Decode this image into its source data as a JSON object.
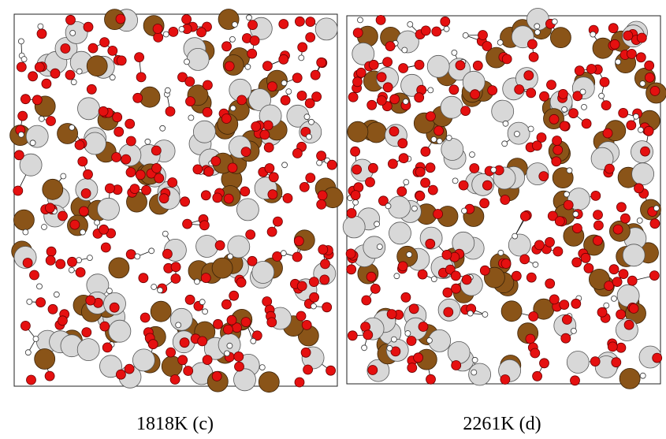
{
  "panels": [
    {
      "caption": "1818K (c)"
    },
    {
      "caption": "2261K (d)"
    }
  ]
}
